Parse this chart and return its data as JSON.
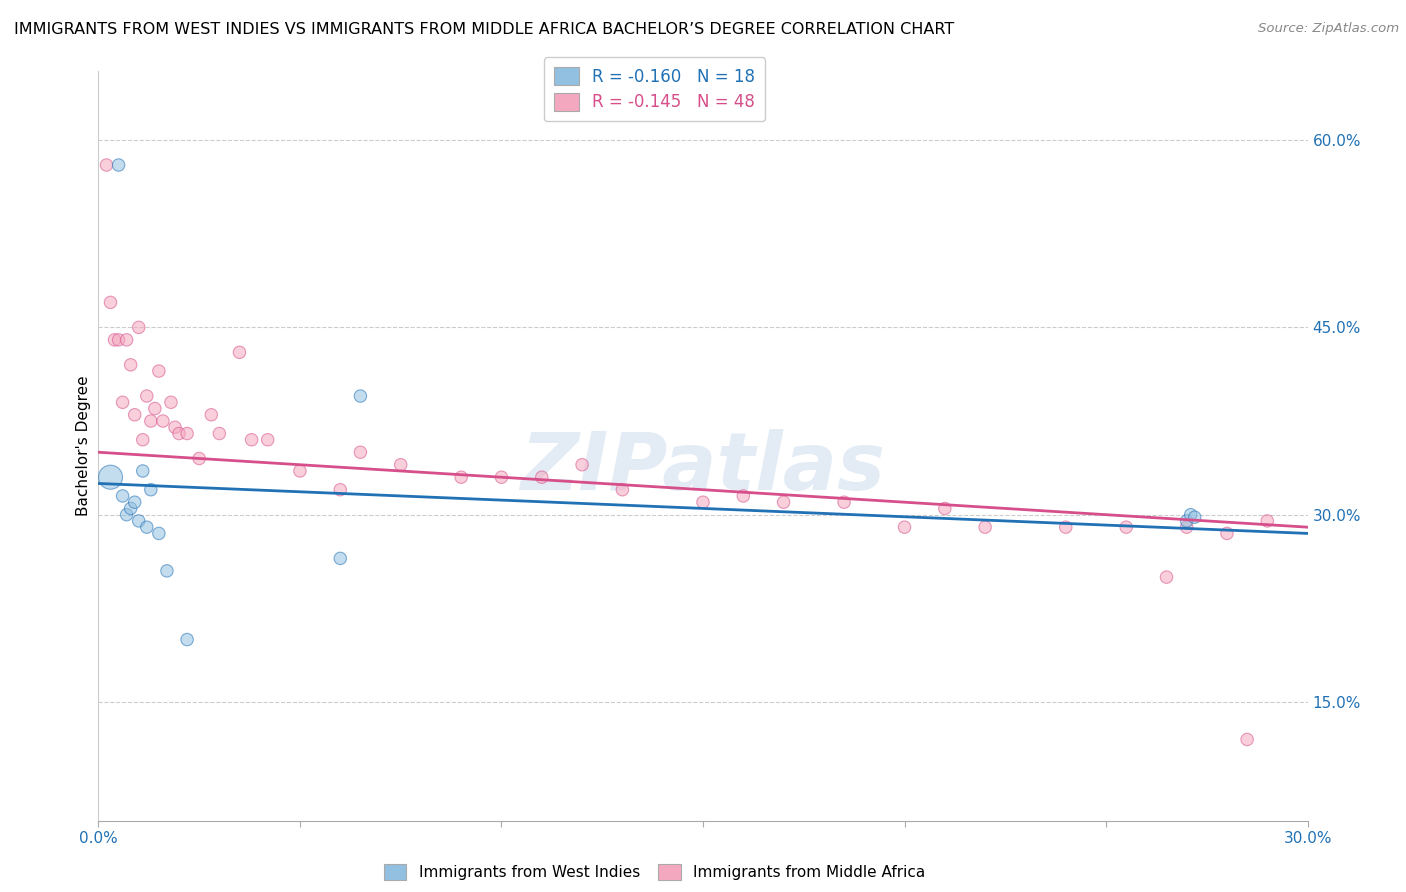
{
  "title": "IMMIGRANTS FROM WEST INDIES VS IMMIGRANTS FROM MIDDLE AFRICA BACHELOR’S DEGREE CORRELATION CHART",
  "source": "Source: ZipAtlas.com",
  "ylabel": "Bachelor's Degree",
  "xlim": [
    0.0,
    0.3
  ],
  "ylim": [
    0.055,
    0.655
  ],
  "yticks": [
    0.15,
    0.3,
    0.45,
    0.6
  ],
  "ytick_labels": [
    "15.0%",
    "30.0%",
    "45.0%",
    "60.0%"
  ],
  "xticks": [
    0.0,
    0.05,
    0.1,
    0.15,
    0.2,
    0.25,
    0.3
  ],
  "legend_R1": "-0.160",
  "legend_N1": "18",
  "legend_R2": "-0.145",
  "legend_N2": "48",
  "color_blue": "#92c0e0",
  "color_pink": "#f4a8bf",
  "color_line_blue": "#2171b5",
  "color_line_pink": "#d64f8a",
  "watermark": "ZIPatlas",
  "west_indies_x": [
    0.003,
    0.005,
    0.006,
    0.007,
    0.008,
    0.009,
    0.01,
    0.011,
    0.012,
    0.013,
    0.015,
    0.017,
    0.022,
    0.06,
    0.065,
    0.27,
    0.271,
    0.272
  ],
  "west_indies_y": [
    0.33,
    0.58,
    0.315,
    0.3,
    0.305,
    0.31,
    0.295,
    0.335,
    0.29,
    0.32,
    0.285,
    0.255,
    0.2,
    0.265,
    0.395,
    0.295,
    0.3,
    0.298
  ],
  "west_indies_size": [
    300,
    80,
    80,
    80,
    80,
    80,
    80,
    80,
    80,
    80,
    80,
    80,
    80,
    80,
    80,
    80,
    80,
    80
  ],
  "middle_africa_x": [
    0.002,
    0.003,
    0.004,
    0.005,
    0.006,
    0.007,
    0.008,
    0.009,
    0.01,
    0.011,
    0.012,
    0.013,
    0.014,
    0.015,
    0.016,
    0.018,
    0.019,
    0.02,
    0.022,
    0.025,
    0.028,
    0.03,
    0.035,
    0.038,
    0.042,
    0.05,
    0.06,
    0.065,
    0.075,
    0.09,
    0.1,
    0.11,
    0.12,
    0.13,
    0.15,
    0.16,
    0.17,
    0.185,
    0.2,
    0.21,
    0.22,
    0.24,
    0.255,
    0.265,
    0.27,
    0.28,
    0.285,
    0.29
  ],
  "middle_africa_y": [
    0.58,
    0.47,
    0.44,
    0.44,
    0.39,
    0.44,
    0.42,
    0.38,
    0.45,
    0.36,
    0.395,
    0.375,
    0.385,
    0.415,
    0.375,
    0.39,
    0.37,
    0.365,
    0.365,
    0.345,
    0.38,
    0.365,
    0.43,
    0.36,
    0.36,
    0.335,
    0.32,
    0.35,
    0.34,
    0.33,
    0.33,
    0.33,
    0.34,
    0.32,
    0.31,
    0.315,
    0.31,
    0.31,
    0.29,
    0.305,
    0.29,
    0.29,
    0.29,
    0.25,
    0.29,
    0.285,
    0.12,
    0.295
  ],
  "middle_africa_size": [
    80,
    80,
    80,
    80,
    80,
    80,
    80,
    80,
    80,
    80,
    80,
    80,
    80,
    80,
    80,
    80,
    80,
    80,
    80,
    80,
    80,
    80,
    80,
    80,
    80,
    80,
    80,
    80,
    80,
    80,
    80,
    80,
    80,
    80,
    80,
    80,
    80,
    80,
    80,
    80,
    80,
    80,
    80,
    80,
    80,
    80,
    80,
    80
  ],
  "line_blue_x0": 0.0,
  "line_blue_x1": 0.3,
  "line_blue_y0": 0.325,
  "line_blue_y1": 0.285,
  "line_pink_x0": 0.0,
  "line_pink_x1": 0.3,
  "line_pink_y0": 0.35,
  "line_pink_y1": 0.29
}
